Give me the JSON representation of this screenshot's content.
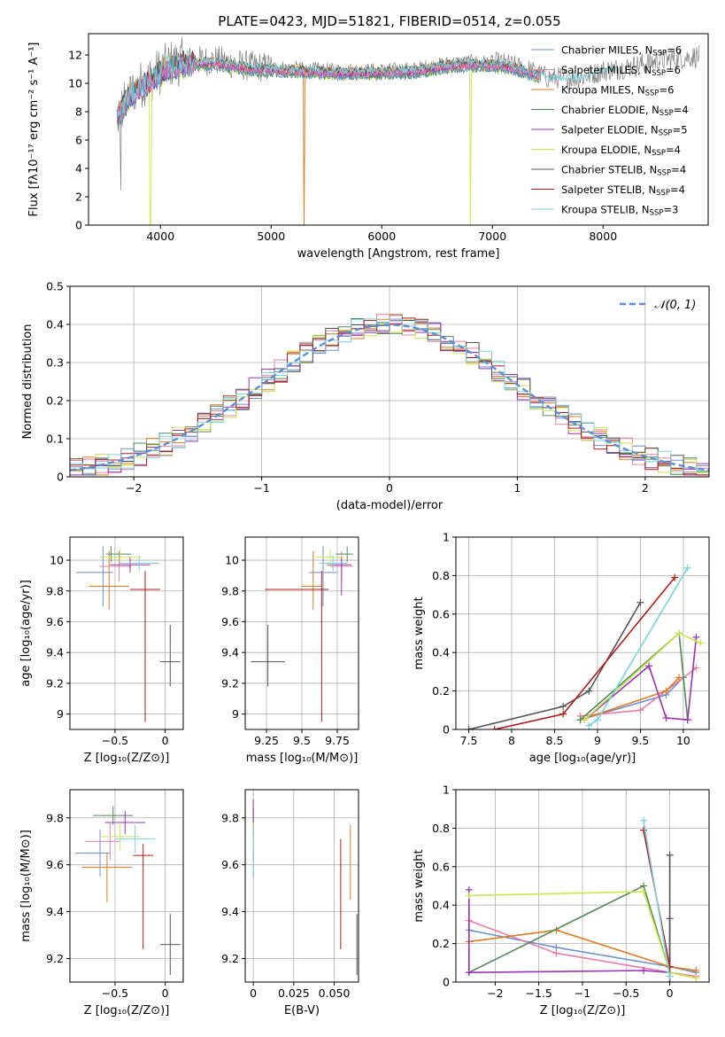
{
  "figure": {
    "title": "PLATE=0423, MJD=51821, FIBERID=0514, z=0.055"
  },
  "colors": {
    "Chabrier MILES": "#6b8fd6",
    "Salpeter MILES": "#e67fa8",
    "Kroupa MILES": "#e07a1f",
    "Chabrier ELODIE": "#4f8a5a",
    "Salpeter ELODIE": "#9d30b8",
    "Kroupa ELODIE": "#c9e84a",
    "Chabrier STELIB": "#555555",
    "Salpeter STELIB": "#b51a1a",
    "Kroupa STELIB": "#79d2df",
    "gauss": "#5b8fd9"
  },
  "chart_data": [
    {
      "id": "spectrum",
      "type": "line",
      "xlabel": "wavelength [Angstrom, rest frame]",
      "ylabel": "Flux [fλ10⁻¹⁷ erg cm⁻² s⁻¹ A⁻¹]",
      "xlim": [
        3350,
        8950
      ],
      "ylim": [
        0,
        13.5
      ],
      "xticks": [
        4000,
        5000,
        6000,
        7000,
        8000
      ],
      "yticks": [
        0,
        2,
        4,
        6,
        8,
        10,
        12
      ],
      "legend_position": "right",
      "legend": [
        {
          "name": "Chabrier MILES",
          "nssp": "6"
        },
        {
          "name": "Salpeter MILES",
          "nssp": "6"
        },
        {
          "name": "Kroupa MILES",
          "nssp": "6"
        },
        {
          "name": "Chabrier ELODIE",
          "nssp": "4"
        },
        {
          "name": "Salpeter ELODIE",
          "nssp": "5"
        },
        {
          "name": "Kroupa ELODIE",
          "nssp": "4"
        },
        {
          "name": "Chabrier STELIB",
          "nssp": "4"
        },
        {
          "name": "Salpeter STELIB",
          "nssp": "4"
        },
        {
          "name": "Kroupa STELIB",
          "nssp": "3"
        }
      ],
      "continuum": {
        "x": [
          3600,
          3700,
          3800,
          3900,
          4000,
          4100,
          4300,
          4500,
          4800,
          5000,
          5300,
          5600,
          6000,
          6300,
          6600,
          6800,
          7100,
          7300,
          7500,
          7800,
          8000,
          8200,
          8500,
          8850
        ],
        "y": [
          7.5,
          9.0,
          9.8,
          10.3,
          10.9,
          11.4,
          11.6,
          11.6,
          11.2,
          11.1,
          11.0,
          10.9,
          10.9,
          11.0,
          11.4,
          11.5,
          11.4,
          11.0,
          10.4,
          10.4,
          10.9,
          11.1,
          11.6,
          11.9
        ]
      }
    },
    {
      "id": "residuals",
      "type": "line",
      "xlabel": "(data-model)/error",
      "ylabel": "Normed distribution",
      "xlim": [
        -2.5,
        2.5
      ],
      "ylim": [
        0,
        0.5
      ],
      "xticks": [
        -2,
        -1,
        0,
        1,
        2
      ],
      "yticks": [
        0.0,
        0.1,
        0.2,
        0.3,
        0.4,
        0.5
      ],
      "legend": "𝒩(0, 1)",
      "bin_edges": [
        -2.5,
        -2.4,
        -2.3,
        -2.2,
        -2.1,
        -2.0,
        -1.9,
        -1.8,
        -1.7,
        -1.6,
        -1.5,
        -1.4,
        -1.3,
        -1.2,
        -1.1,
        -1.0,
        -0.9,
        -0.8,
        -0.7,
        -0.6,
        -0.5,
        -0.4,
        -0.3,
        -0.2,
        -0.1,
        0.0,
        0.1,
        0.2,
        0.3,
        0.4,
        0.5,
        0.6,
        0.7,
        0.8,
        0.9,
        1.0,
        1.1,
        1.2,
        1.3,
        1.4,
        1.5,
        1.6,
        1.7,
        1.8,
        1.9,
        2.0,
        2.1,
        2.2,
        2.3,
        2.4,
        2.5
      ],
      "gaussian": {
        "mean": 0,
        "sigma": 1
      }
    },
    {
      "id": "age_vs_Z",
      "type": "scatter",
      "xlabel": "Z [log₁₀(Z/Z⊙)]",
      "ylabel": "age  [log₁₀(age/yr)]",
      "xlim": [
        -0.95,
        0.18
      ],
      "ylim": [
        8.9,
        10.15
      ],
      "xticks": [
        -0.5,
        0.0
      ],
      "yticks": [
        9.0,
        9.2,
        9.4,
        9.6,
        9.8,
        10.0
      ],
      "points": [
        {
          "model": "Chabrier MILES",
          "x": -0.62,
          "y": 9.92,
          "xerr": [
            0.27,
            0.1
          ],
          "yerr": [
            0.22,
            0.17
          ]
        },
        {
          "model": "Salpeter MILES",
          "x": -0.46,
          "y": 9.96,
          "xerr": [
            0.2,
            0.12
          ],
          "yerr": [
            0.1,
            0.1
          ]
        },
        {
          "model": "Kroupa MILES",
          "x": -0.56,
          "y": 9.83,
          "xerr": [
            0.2,
            0.2
          ],
          "yerr": [
            0.15,
            0.23
          ]
        },
        {
          "model": "Chabrier ELODIE",
          "x": -0.54,
          "y": 10.04,
          "xerr": [
            0.05,
            0.2
          ],
          "yerr": [
            0.05,
            0.05
          ]
        },
        {
          "model": "Salpeter ELODIE",
          "x": -0.35,
          "y": 9.97,
          "xerr": [
            0.2,
            0.2
          ],
          "yerr": [
            0.05,
            0.05
          ]
        },
        {
          "model": "Kroupa ELODIE",
          "x": -0.45,
          "y": 10.02,
          "xerr": [
            0.2,
            0.2
          ],
          "yerr": [
            0.05,
            0.05
          ]
        },
        {
          "model": "Chabrier STELIB",
          "x": 0.05,
          "y": 9.34,
          "xerr": [
            0.1,
            0.1
          ],
          "yerr": [
            0.16,
            0.24
          ]
        },
        {
          "model": "Salpeter STELIB",
          "x": -0.2,
          "y": 9.81,
          "xerr": [
            0.15,
            0.15
          ],
          "yerr": [
            0.86,
            0.12
          ]
        },
        {
          "model": "Kroupa STELIB",
          "x": -0.26,
          "y": 9.98,
          "xerr": [
            0.2,
            0.2
          ],
          "yerr": [
            0.05,
            0.05
          ]
        }
      ]
    },
    {
      "id": "age_vs_mass",
      "type": "scatter",
      "xlabel": "mass [log₁₀(M/M⊙)]",
      "ylabel": "",
      "xlim": [
        9.1,
        9.9
      ],
      "ylim": [
        8.9,
        10.15
      ],
      "xticks": [
        9.25,
        9.5,
        9.75
      ],
      "yticks": [
        9.0,
        9.2,
        9.4,
        9.6,
        9.8,
        10.0
      ],
      "points": [
        {
          "model": "Chabrier MILES",
          "x": 9.65,
          "y": 9.92,
          "xerr": [
            0.1,
            0.1
          ],
          "yerr": [
            0.22,
            0.17
          ]
        },
        {
          "model": "Salpeter MILES",
          "x": 9.78,
          "y": 9.96,
          "xerr": [
            0.08,
            0.08
          ],
          "yerr": [
            0.1,
            0.1
          ]
        },
        {
          "model": "Kroupa MILES",
          "x": 9.58,
          "y": 9.83,
          "xerr": [
            0.08,
            0.06
          ],
          "yerr": [
            0.15,
            0.23
          ]
        },
        {
          "model": "Chabrier ELODIE",
          "x": 9.82,
          "y": 10.04,
          "xerr": [
            0.08,
            0.04
          ],
          "yerr": [
            0.05,
            0.05
          ]
        },
        {
          "model": "Salpeter ELODIE",
          "x": 9.78,
          "y": 9.97,
          "xerr": [
            0.1,
            0.07
          ],
          "yerr": [
            0.2,
            0.05
          ]
        },
        {
          "model": "Kroupa ELODIE",
          "x": 9.7,
          "y": 10.02,
          "xerr": [
            0.1,
            0.1
          ],
          "yerr": [
            0.05,
            0.05
          ]
        },
        {
          "model": "Chabrier STELIB",
          "x": 9.26,
          "y": 9.34,
          "xerr": [
            0.12,
            0.12
          ],
          "yerr": [
            0.16,
            0.24
          ]
        },
        {
          "model": "Salpeter STELIB",
          "x": 9.64,
          "y": 9.81,
          "xerr": [
            0.4,
            0.05
          ],
          "yerr": [
            0.86,
            0.12
          ]
        },
        {
          "model": "Kroupa STELIB",
          "x": 9.72,
          "y": 9.98,
          "xerr": [
            0.1,
            0.1
          ],
          "yerr": [
            0.05,
            0.05
          ]
        }
      ]
    },
    {
      "id": "weight_vs_age",
      "type": "line",
      "xlabel": "age  [log₁₀(age/yr)]",
      "ylabel": "mass weight",
      "xlim": [
        7.35,
        10.3
      ],
      "ylim": [
        0,
        1.0
      ],
      "xticks": [
        7.5,
        8.0,
        8.5,
        9.0,
        9.5,
        10.0
      ],
      "yticks": [
        0.0,
        0.2,
        0.4,
        0.6,
        0.8,
        1.0
      ],
      "series": [
        {
          "model": "Chabrier MILES",
          "x": [
            8.8,
            9.8,
            10.0
          ],
          "y": [
            0.05,
            0.18,
            0.27
          ]
        },
        {
          "model": "Salpeter MILES",
          "x": [
            8.8,
            9.5,
            10.15
          ],
          "y": [
            0.07,
            0.1,
            0.32
          ]
        },
        {
          "model": "Kroupa MILES",
          "x": [
            8.8,
            9.8,
            9.95
          ],
          "y": [
            0.05,
            0.2,
            0.27
          ]
        },
        {
          "model": "Chabrier ELODIE",
          "x": [
            8.8,
            9.95,
            10.05
          ],
          "y": [
            0.05,
            0.5,
            0.05
          ]
        },
        {
          "model": "Salpeter ELODIE",
          "x": [
            8.85,
            9.6,
            9.8,
            10.05,
            10.15
          ],
          "y": [
            0.05,
            0.33,
            0.06,
            0.05,
            0.48
          ]
        },
        {
          "model": "Kroupa ELODIE",
          "x": [
            8.85,
            9.95,
            10.2
          ],
          "y": [
            0.05,
            0.5,
            0.45
          ]
        },
        {
          "model": "Chabrier STELIB",
          "x": [
            7.5,
            8.6,
            8.9,
            9.5
          ],
          "y": [
            0.0,
            0.12,
            0.2,
            0.66
          ]
        },
        {
          "model": "Salpeter STELIB",
          "x": [
            7.8,
            8.6,
            9.9
          ],
          "y": [
            0.0,
            0.08,
            0.79
          ]
        },
        {
          "model": "Kroupa STELIB",
          "x": [
            8.9,
            9.0,
            10.05
          ],
          "y": [
            0.02,
            0.05,
            0.84
          ]
        }
      ]
    },
    {
      "id": "mass_vs_Z",
      "type": "scatter",
      "xlabel": "Z [log₁₀(Z/Z⊙)]",
      "ylabel": "mass [log₁₀(M/M⊙)]",
      "xlim": [
        -0.95,
        0.18
      ],
      "ylim": [
        9.1,
        9.92
      ],
      "xticks": [
        -0.5,
        0.0
      ],
      "yticks": [
        9.2,
        9.4,
        9.6,
        9.8
      ],
      "points": [
        {
          "model": "Chabrier MILES",
          "x": -0.65,
          "y": 9.65,
          "xerr": [
            0.25,
            0.1
          ],
          "yerr": [
            0.1,
            0.1
          ]
        },
        {
          "model": "Salpeter MILES",
          "x": -0.55,
          "y": 9.7,
          "xerr": [
            0.25,
            0.1
          ],
          "yerr": [
            0.08,
            0.08
          ]
        },
        {
          "model": "Kroupa MILES",
          "x": -0.58,
          "y": 9.59,
          "xerr": [
            0.25,
            0.25
          ],
          "yerr": [
            0.15,
            0.06
          ]
        },
        {
          "model": "Chabrier ELODIE",
          "x": -0.52,
          "y": 9.81,
          "xerr": [
            0.2,
            0.2
          ],
          "yerr": [
            0.04,
            0.04
          ]
        },
        {
          "model": "Salpeter ELODIE",
          "x": -0.4,
          "y": 9.78,
          "xerr": [
            0.2,
            0.2
          ],
          "yerr": [
            0.05,
            0.05
          ]
        },
        {
          "model": "Kroupa ELODIE",
          "x": -0.45,
          "y": 9.72,
          "xerr": [
            0.2,
            0.2
          ],
          "yerr": [
            0.06,
            0.06
          ]
        },
        {
          "model": "Chabrier STELIB",
          "x": 0.05,
          "y": 9.26,
          "xerr": [
            0.1,
            0.1
          ],
          "yerr": [
            0.13,
            0.13
          ]
        },
        {
          "model": "Salpeter STELIB",
          "x": -0.22,
          "y": 9.64,
          "xerr": [
            0.1,
            0.1
          ],
          "yerr": [
            0.4,
            0.05
          ]
        },
        {
          "model": "Kroupa STELIB",
          "x": -0.3,
          "y": 9.71,
          "xerr": [
            0.2,
            0.2
          ],
          "yerr": [
            0.06,
            0.06
          ]
        }
      ]
    },
    {
      "id": "mass_vs_ebv",
      "type": "scatter",
      "xlabel": "E(B-V)",
      "ylabel": "",
      "xlim": [
        -0.005,
        0.065
      ],
      "ylim": [
        9.1,
        9.92
      ],
      "xticks": [
        0.0,
        0.025,
        0.05
      ],
      "yticks": [
        9.2,
        9.4,
        9.6,
        9.8
      ],
      "points": [
        {
          "model": "Chabrier MILES",
          "x": 0.0,
          "y": 9.65,
          "xerr": [
            0,
            0
          ],
          "yerr": [
            0.1,
            0.1
          ]
        },
        {
          "model": "Salpeter MILES",
          "x": 0.0,
          "y": 9.7,
          "xerr": [
            0,
            0
          ],
          "yerr": [
            0.08,
            0.08
          ]
        },
        {
          "model": "Kroupa MILES",
          "x": 0.06,
          "y": 9.6,
          "xerr": [
            0,
            0
          ],
          "yerr": [
            0.15,
            0.17
          ]
        },
        {
          "model": "Chabrier ELODIE",
          "x": 0.0,
          "y": 9.8,
          "xerr": [
            0,
            0
          ],
          "yerr": [
            0.04,
            0.04
          ]
        },
        {
          "model": "Salpeter ELODIE",
          "x": 0.0,
          "y": 9.78,
          "xerr": [
            0,
            0
          ],
          "yerr": [
            0.05,
            0.1
          ]
        },
        {
          "model": "Kroupa ELODIE",
          "x": 0.0,
          "y": 9.72,
          "xerr": [
            0,
            0
          ],
          "yerr": [
            0.06,
            0.06
          ]
        },
        {
          "model": "Chabrier STELIB",
          "x": 0.064,
          "y": 9.26,
          "xerr": [
            0,
            0
          ],
          "yerr": [
            0.13,
            0.13
          ]
        },
        {
          "model": "Salpeter STELIB",
          "x": 0.054,
          "y": 9.47,
          "xerr": [
            0,
            0
          ],
          "yerr": [
            0.23,
            0.24
          ]
        },
        {
          "model": "Kroupa STELIB",
          "x": 0.0,
          "y": 9.62,
          "xerr": [
            0,
            0
          ],
          "yerr": [
            0.06,
            0.14
          ]
        }
      ]
    },
    {
      "id": "weight_vs_Z",
      "type": "line",
      "xlabel": "Z [log₁₀(Z/Z⊙)]",
      "ylabel": "mass weight",
      "xlim": [
        -2.45,
        0.45
      ],
      "ylim": [
        0,
        1.0
      ],
      "xticks": [
        -2.0,
        -1.5,
        -1.0,
        -0.5,
        0.0
      ],
      "yticks": [
        0.0,
        0.2,
        0.4,
        0.6,
        0.8,
        1.0
      ],
      "series": [
        {
          "model": "Chabrier MILES",
          "x": [
            -2.3,
            -1.3,
            0.0,
            0.3
          ],
          "y": [
            0.27,
            0.18,
            0.08,
            0.05
          ]
        },
        {
          "model": "Salpeter MILES",
          "x": [
            -2.3,
            -1.3,
            0.0,
            0.3
          ],
          "y": [
            0.32,
            0.15,
            0.05,
            0.03
          ]
        },
        {
          "model": "Kroupa MILES",
          "x": [
            -2.3,
            -1.3,
            0.0,
            0.3
          ],
          "y": [
            0.21,
            0.27,
            0.08,
            0.06
          ]
        },
        {
          "model": "Chabrier ELODIE",
          "x": [
            -2.3,
            -0.3,
            0.0
          ],
          "y": [
            0.05,
            0.5,
            0.05
          ]
        },
        {
          "model": "Salpeter ELODIE",
          "x": [
            -2.3,
            -2.3,
            -0.3,
            0.0,
            0.0
          ],
          "y": [
            0.48,
            0.05,
            0.06,
            0.05,
            0.33
          ]
        },
        {
          "model": "Kroupa ELODIE",
          "x": [
            -2.3,
            -0.3,
            0.0,
            0.3
          ],
          "y": [
            0.45,
            0.47,
            0.05,
            0.02
          ]
        },
        {
          "model": "Chabrier STELIB",
          "x": [
            0.0,
            0.0
          ],
          "y": [
            0.0,
            0.66
          ]
        },
        {
          "model": "Salpeter STELIB",
          "x": [
            -0.3,
            0.0
          ],
          "y": [
            0.79,
            0.08
          ]
        },
        {
          "model": "Kroupa STELIB",
          "x": [
            -0.3,
            0.0
          ],
          "y": [
            0.84,
            0.03
          ]
        }
      ]
    }
  ]
}
